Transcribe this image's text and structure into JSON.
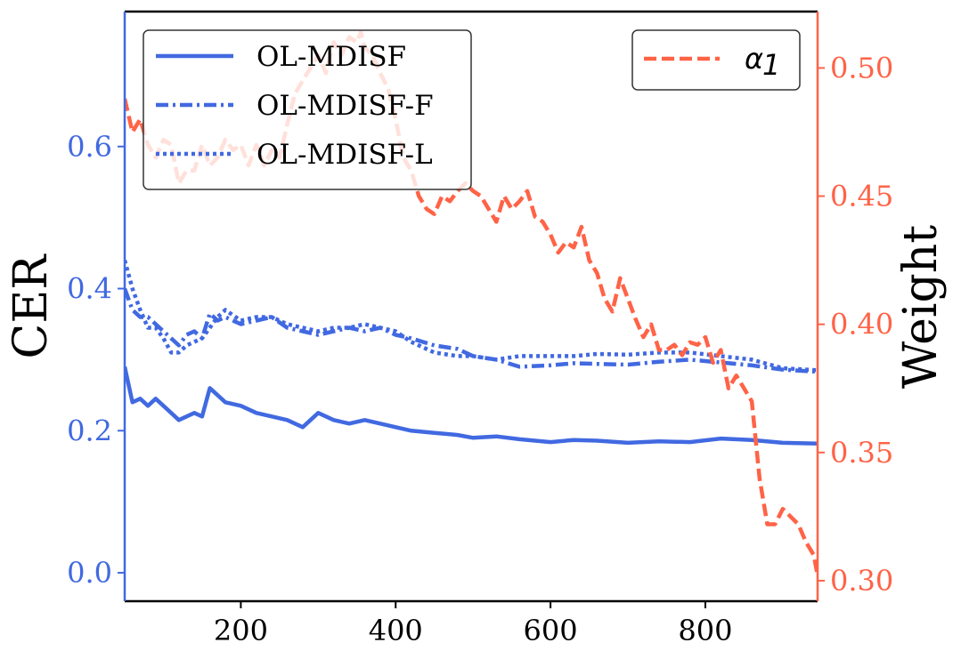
{
  "chart_data": {
    "type": "line",
    "title": "",
    "xlabel": "",
    "ylabel_left": "CER",
    "ylabel_right": "Weight",
    "xlim": [
      50,
      945
    ],
    "ylim_left": [
      -0.04,
      0.79
    ],
    "ylim_right": [
      0.292,
      0.522
    ],
    "x_ticks": [
      200,
      400,
      600,
      800
    ],
    "x_tick_labels": [
      "200",
      "400",
      "600",
      "800"
    ],
    "y_left_ticks": [
      0.0,
      0.2,
      0.4,
      0.6
    ],
    "y_left_tick_labels": [
      "0.0",
      "0.2",
      "0.4",
      "0.6"
    ],
    "y_right_ticks": [
      0.3,
      0.35,
      0.4,
      0.45,
      0.5
    ],
    "y_right_tick_labels": [
      "0.30",
      "0.35",
      "0.40",
      "0.45",
      "0.50"
    ],
    "colors": {
      "blue": "#4169E1",
      "orange": "#FF6347"
    },
    "legend_left": {
      "placement": "top-left",
      "entries": [
        "OL-MDISF",
        "OL-MDISF-F",
        "OL-MDISF-L"
      ]
    },
    "legend_right": {
      "placement": "top-right",
      "entries": [
        {
          "symbol": "α",
          "subscript": "1"
        }
      ]
    },
    "series": [
      {
        "name": "OL-MDISF",
        "axis": "left",
        "style": "solid",
        "x": [
          50,
          60,
          70,
          80,
          90,
          100,
          110,
          120,
          130,
          140,
          150,
          160,
          170,
          180,
          200,
          220,
          240,
          260,
          280,
          300,
          320,
          340,
          360,
          380,
          400,
          420,
          450,
          480,
          500,
          530,
          560,
          600,
          630,
          660,
          700,
          740,
          780,
          820,
          860,
          900,
          945
        ],
        "values": [
          0.29,
          0.24,
          0.245,
          0.235,
          0.245,
          0.235,
          0.225,
          0.215,
          0.22,
          0.225,
          0.22,
          0.26,
          0.25,
          0.24,
          0.235,
          0.225,
          0.22,
          0.215,
          0.205,
          0.225,
          0.215,
          0.21,
          0.215,
          0.21,
          0.205,
          0.2,
          0.197,
          0.194,
          0.19,
          0.192,
          0.188,
          0.184,
          0.187,
          0.186,
          0.183,
          0.185,
          0.184,
          0.189,
          0.187,
          0.183,
          0.182
        ]
      },
      {
        "name": "OL-MDISF-F",
        "axis": "left",
        "style": "dashdot",
        "x": [
          50,
          60,
          70,
          80,
          90,
          100,
          110,
          120,
          130,
          140,
          150,
          160,
          170,
          180,
          200,
          220,
          240,
          260,
          280,
          300,
          320,
          340,
          360,
          380,
          400,
          420,
          450,
          480,
          500,
          530,
          560,
          600,
          630,
          660,
          700,
          740,
          780,
          820,
          860,
          900,
          945
        ],
        "values": [
          0.4,
          0.37,
          0.36,
          0.36,
          0.35,
          0.34,
          0.33,
          0.32,
          0.335,
          0.34,
          0.33,
          0.365,
          0.355,
          0.36,
          0.35,
          0.355,
          0.36,
          0.345,
          0.34,
          0.335,
          0.34,
          0.345,
          0.34,
          0.345,
          0.335,
          0.33,
          0.32,
          0.315,
          0.305,
          0.3,
          0.29,
          0.292,
          0.295,
          0.294,
          0.293,
          0.297,
          0.3,
          0.296,
          0.292,
          0.286,
          0.283
        ]
      },
      {
        "name": "OL-MDISF-L",
        "axis": "left",
        "style": "dotted",
        "x": [
          50,
          60,
          70,
          80,
          90,
          100,
          110,
          120,
          130,
          140,
          150,
          160,
          170,
          180,
          200,
          220,
          240,
          260,
          280,
          300,
          320,
          340,
          360,
          380,
          400,
          420,
          450,
          480,
          500,
          530,
          560,
          600,
          630,
          660,
          700,
          740,
          780,
          820,
          860,
          900,
          945
        ],
        "values": [
          0.44,
          0.4,
          0.37,
          0.345,
          0.345,
          0.33,
          0.31,
          0.31,
          0.32,
          0.325,
          0.33,
          0.345,
          0.36,
          0.37,
          0.355,
          0.36,
          0.36,
          0.35,
          0.345,
          0.34,
          0.345,
          0.345,
          0.35,
          0.345,
          0.34,
          0.325,
          0.31,
          0.305,
          0.305,
          0.3,
          0.305,
          0.305,
          0.305,
          0.308,
          0.307,
          0.31,
          0.31,
          0.305,
          0.3,
          0.288,
          0.285
        ]
      },
      {
        "name": "α1",
        "axis": "right",
        "style": "dashed",
        "x": [
          50,
          60,
          70,
          80,
          90,
          100,
          110,
          120,
          130,
          140,
          150,
          160,
          170,
          180,
          190,
          200,
          210,
          220,
          230,
          240,
          250,
          260,
          270,
          280,
          290,
          300,
          310,
          320,
          330,
          340,
          350,
          355,
          360,
          370,
          380,
          390,
          400,
          410,
          420,
          430,
          440,
          450,
          460,
          470,
          480,
          490,
          500,
          510,
          520,
          530,
          540,
          550,
          560,
          570,
          580,
          590,
          600,
          610,
          620,
          630,
          640,
          650,
          660,
          670,
          680,
          690,
          700,
          710,
          720,
          730,
          740,
          750,
          760,
          770,
          780,
          790,
          800,
          810,
          820,
          830,
          840,
          850,
          860,
          870,
          880,
          890,
          900,
          910,
          920,
          930,
          940,
          945
        ],
        "values": [
          0.488,
          0.475,
          0.48,
          0.47,
          0.465,
          0.472,
          0.47,
          0.455,
          0.46,
          0.46,
          0.47,
          0.462,
          0.465,
          0.472,
          0.468,
          0.47,
          0.462,
          0.47,
          0.462,
          0.468,
          0.465,
          0.478,
          0.49,
          0.495,
          0.5,
          0.505,
          0.498,
          0.51,
          0.505,
          0.512,
          0.51,
          0.514,
          0.508,
          0.505,
          0.498,
          0.492,
          0.48,
          0.465,
          0.46,
          0.45,
          0.445,
          0.443,
          0.45,
          0.448,
          0.452,
          0.455,
          0.452,
          0.45,
          0.445,
          0.44,
          0.45,
          0.445,
          0.448,
          0.452,
          0.442,
          0.44,
          0.435,
          0.428,
          0.432,
          0.43,
          0.438,
          0.425,
          0.42,
          0.41,
          0.405,
          0.418,
          0.41,
          0.402,
          0.395,
          0.4,
          0.39,
          0.39,
          0.392,
          0.388,
          0.393,
          0.392,
          0.395,
          0.385,
          0.39,
          0.375,
          0.38,
          0.375,
          0.37,
          0.34,
          0.322,
          0.322,
          0.328,
          0.325,
          0.322,
          0.315,
          0.31,
          0.302
        ]
      }
    ]
  }
}
